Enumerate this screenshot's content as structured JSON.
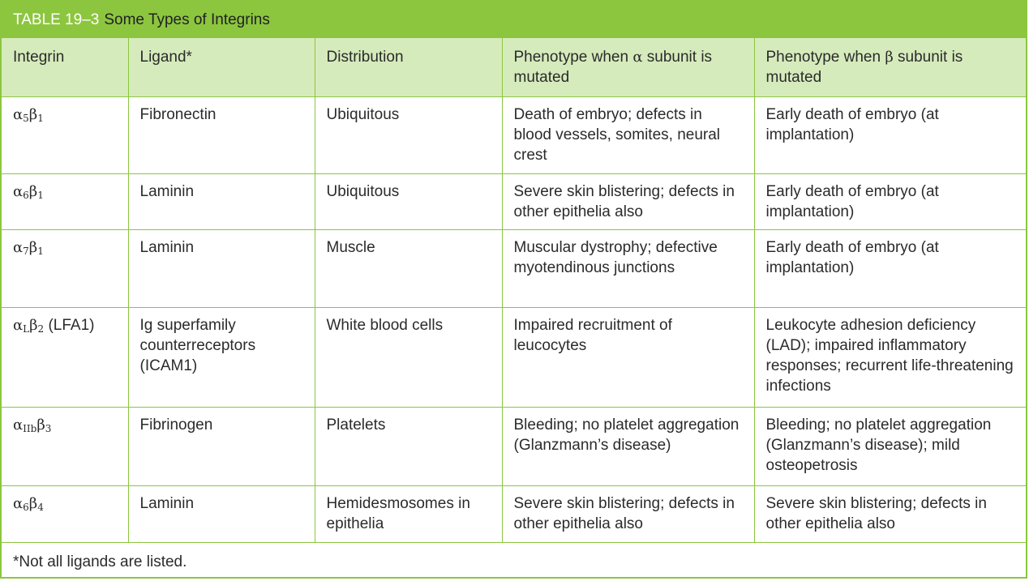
{
  "table": {
    "label": "TABLE 19–3",
    "title": "Some Types of Integrins",
    "headers": [
      {
        "pre": "Integrin",
        "greek": "",
        "post": ""
      },
      {
        "pre": "Ligand*",
        "greek": "",
        "post": ""
      },
      {
        "pre": "Distribution",
        "greek": "",
        "post": ""
      },
      {
        "pre": "Phenotype when ",
        "greek": "α",
        "post": " subunit is mutated"
      },
      {
        "pre": "Phenotype when ",
        "greek": "β",
        "post": " subunit is mutated"
      }
    ],
    "rows": [
      {
        "integrin": {
          "a": "α",
          "a_sub": "5",
          "b": "β",
          "b_sub": "1",
          "tail": ""
        },
        "ligand": "Fibronectin",
        "distribution": "Ubiquitous",
        "alpha_phenotype": "Death of embryo; defects in blood vessels, somites, neural crest",
        "beta_phenotype": "Early death of embryo (at implantation)"
      },
      {
        "integrin": {
          "a": "α",
          "a_sub": "6",
          "b": "β",
          "b_sub": "1",
          "tail": ""
        },
        "ligand": "Laminin",
        "distribution": "Ubiquitous",
        "alpha_phenotype": "Severe skin blistering; defects in other epithelia also",
        "beta_phenotype": "Early death of embryo (at implantation)"
      },
      {
        "integrin": {
          "a": "α",
          "a_sub": "7",
          "b": "β",
          "b_sub": "1",
          "tail": ""
        },
        "ligand": "Laminin",
        "distribution": "Muscle",
        "alpha_phenotype": "Muscular dystrophy; defective myotendinous junctions",
        "beta_phenotype": "Early death of embryo (at implantation)"
      },
      {
        "integrin": {
          "a": "α",
          "a_sub": "L",
          "b": "β",
          "b_sub": "2",
          "tail": " (LFA1)"
        },
        "ligand": "Ig superfamily counterreceptors (ICAM1)",
        "distribution": "White blood cells",
        "alpha_phenotype": "Impaired recruitment of leucocytes",
        "beta_phenotype": "Leukocyte adhesion deficiency (LAD); impaired inflammatory responses; recurrent life-threatening infections"
      },
      {
        "integrin": {
          "a": "α",
          "a_sub": "IIb",
          "b": "β",
          "b_sub": "3",
          "tail": ""
        },
        "ligand": "Fibrinogen",
        "distribution": "Platelets",
        "alpha_phenotype": "Bleeding; no platelet aggregation (Glanzmann’s disease)",
        "beta_phenotype": "Bleeding; no platelet aggregation (Glanzmann’s disease); mild osteopetrosis"
      },
      {
        "integrin": {
          "a": "α",
          "a_sub": "6",
          "b": "β",
          "b_sub": "4",
          "tail": ""
        },
        "ligand": "Laminin",
        "distribution": "Hemidesmosomes in epithelia",
        "alpha_phenotype": "Severe skin blistering; defects in other epithelia also",
        "beta_phenotype": "Severe skin blistering; defects in other epithelia also"
      }
    ],
    "footnote": "*Not all ligands are listed."
  },
  "colors": {
    "accent": "#8cc63f",
    "header_fill": "#d6ebbc",
    "text": "#2b2b2b"
  }
}
